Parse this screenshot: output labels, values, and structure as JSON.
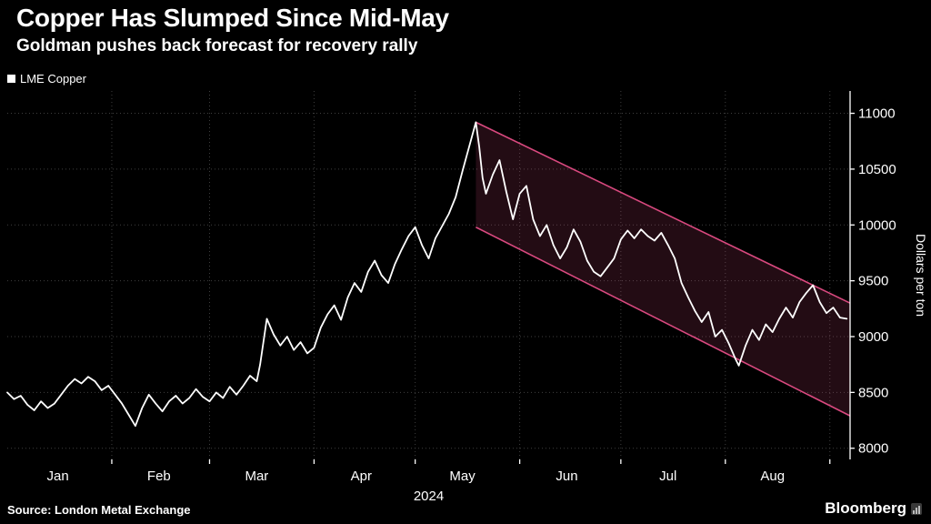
{
  "header": {
    "title": "Copper Has Slumped Since Mid-May",
    "subtitle": "Goldman pushes back forecast for recovery rally"
  },
  "legend": {
    "label": "LME Copper",
    "swatch_color": "#ffffff"
  },
  "chart_data": {
    "type": "line",
    "title": "Copper Has Slumped Since Mid-May",
    "subtitle": "Goldman pushes back forecast for recovery rally",
    "ylabel": "Dollars per ton",
    "year_label": "2024",
    "xlim": [
      0,
      250
    ],
    "ylim": [
      7900,
      11200
    ],
    "yticks": [
      8000,
      8500,
      9000,
      9500,
      10000,
      10500,
      11000
    ],
    "xticks": [
      {
        "label": "Jan",
        "x": 15
      },
      {
        "label": "Feb",
        "x": 45
      },
      {
        "label": "Mar",
        "x": 74
      },
      {
        "label": "Apr",
        "x": 105
      },
      {
        "label": "May",
        "x": 135
      },
      {
        "label": "Jun",
        "x": 166
      },
      {
        "label": "Jul",
        "x": 196
      },
      {
        "label": "Aug",
        "x": 227
      }
    ],
    "month_boundaries": [
      31,
      60,
      91,
      121,
      152,
      182,
      213,
      244
    ],
    "grid_color": "#3f3f3f",
    "axis_color": "#ffffff",
    "legend_position": "top-left",
    "series": {
      "name": "LME Copper",
      "color": "#ffffff",
      "x_unit": "day of 2024",
      "y_unit": "dollars per ton",
      "points": [
        [
          0,
          8500
        ],
        [
          2,
          8440
        ],
        [
          4,
          8470
        ],
        [
          6,
          8390
        ],
        [
          8,
          8340
        ],
        [
          10,
          8420
        ],
        [
          12,
          8360
        ],
        [
          14,
          8400
        ],
        [
          16,
          8480
        ],
        [
          18,
          8560
        ],
        [
          20,
          8620
        ],
        [
          22,
          8580
        ],
        [
          24,
          8640
        ],
        [
          26,
          8600
        ],
        [
          28,
          8520
        ],
        [
          30,
          8560
        ],
        [
          32,
          8480
        ],
        [
          34,
          8400
        ],
        [
          36,
          8300
        ],
        [
          38,
          8200
        ],
        [
          40,
          8360
        ],
        [
          42,
          8480
        ],
        [
          44,
          8400
        ],
        [
          46,
          8330
        ],
        [
          48,
          8420
        ],
        [
          50,
          8470
        ],
        [
          52,
          8400
        ],
        [
          54,
          8450
        ],
        [
          56,
          8530
        ],
        [
          58,
          8460
        ],
        [
          60,
          8420
        ],
        [
          62,
          8500
        ],
        [
          64,
          8450
        ],
        [
          66,
          8550
        ],
        [
          68,
          8480
        ],
        [
          70,
          8560
        ],
        [
          72,
          8650
        ],
        [
          74,
          8600
        ],
        [
          75,
          8750
        ],
        [
          77,
          9160
        ],
        [
          79,
          9020
        ],
        [
          81,
          8920
        ],
        [
          83,
          9000
        ],
        [
          85,
          8880
        ],
        [
          87,
          8950
        ],
        [
          89,
          8850
        ],
        [
          91,
          8900
        ],
        [
          93,
          9080
        ],
        [
          95,
          9200
        ],
        [
          97,
          9280
        ],
        [
          99,
          9150
        ],
        [
          101,
          9350
        ],
        [
          103,
          9480
        ],
        [
          105,
          9400
        ],
        [
          107,
          9580
        ],
        [
          109,
          9680
        ],
        [
          111,
          9550
        ],
        [
          113,
          9480
        ],
        [
          115,
          9650
        ],
        [
          117,
          9780
        ],
        [
          119,
          9900
        ],
        [
          121,
          9980
        ],
        [
          123,
          9820
        ],
        [
          125,
          9700
        ],
        [
          127,
          9880
        ],
        [
          129,
          9990
        ],
        [
          131,
          10100
        ],
        [
          133,
          10250
        ],
        [
          135,
          10480
        ],
        [
          137,
          10700
        ],
        [
          139,
          10920
        ],
        [
          140,
          10700
        ],
        [
          141,
          10420
        ],
        [
          142,
          10280
        ],
        [
          144,
          10450
        ],
        [
          146,
          10580
        ],
        [
          148,
          10300
        ],
        [
          150,
          10050
        ],
        [
          152,
          10280
        ],
        [
          154,
          10350
        ],
        [
          156,
          10050
        ],
        [
          158,
          9900
        ],
        [
          160,
          10000
        ],
        [
          162,
          9820
        ],
        [
          164,
          9700
        ],
        [
          166,
          9800
        ],
        [
          168,
          9960
        ],
        [
          170,
          9850
        ],
        [
          172,
          9680
        ],
        [
          174,
          9580
        ],
        [
          176,
          9540
        ],
        [
          178,
          9620
        ],
        [
          180,
          9700
        ],
        [
          182,
          9870
        ],
        [
          184,
          9950
        ],
        [
          186,
          9880
        ],
        [
          188,
          9960
        ],
        [
          190,
          9900
        ],
        [
          192,
          9860
        ],
        [
          194,
          9930
        ],
        [
          196,
          9820
        ],
        [
          198,
          9700
        ],
        [
          200,
          9480
        ],
        [
          202,
          9350
        ],
        [
          204,
          9230
        ],
        [
          206,
          9130
        ],
        [
          208,
          9220
        ],
        [
          210,
          9000
        ],
        [
          212,
          9060
        ],
        [
          214,
          8940
        ],
        [
          216,
          8800
        ],
        [
          217,
          8740
        ],
        [
          219,
          8920
        ],
        [
          221,
          9060
        ],
        [
          223,
          8970
        ],
        [
          225,
          9110
        ],
        [
          227,
          9040
        ],
        [
          229,
          9160
        ],
        [
          231,
          9260
        ],
        [
          233,
          9170
        ],
        [
          235,
          9310
        ],
        [
          237,
          9390
        ],
        [
          239,
          9460
        ],
        [
          241,
          9310
        ],
        [
          243,
          9210
        ],
        [
          245,
          9260
        ],
        [
          247,
          9170
        ],
        [
          249,
          9160
        ]
      ]
    },
    "channel": {
      "name": "downtrend-channel",
      "color": "#d9497f",
      "fill_opacity": 0.16,
      "x": [
        139,
        250
      ],
      "upper": [
        10920,
        9300
      ],
      "lower": [
        9980,
        8290
      ]
    }
  },
  "footer": {
    "source": "Source: London Metal Exchange",
    "brand": "Bloomberg"
  }
}
